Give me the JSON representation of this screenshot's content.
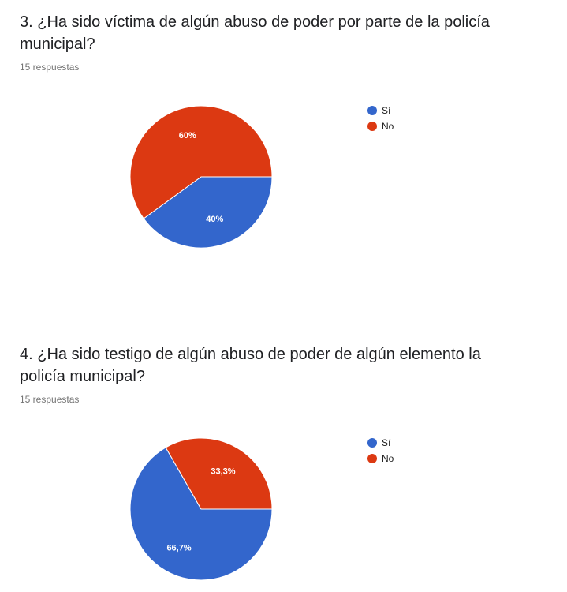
{
  "colors": {
    "si": "#3366cc",
    "no": "#dc3912"
  },
  "questions": [
    {
      "title": "3. ¿Ha sido víctima de algún abuso de poder por parte de la policía municipal?",
      "responses": "15 respuestas",
      "legend": [
        {
          "label": "Sí",
          "color": "#3366cc"
        },
        {
          "label": "No",
          "color": "#dc3912"
        }
      ],
      "chart_data": {
        "type": "pie",
        "categories": [
          "Sí",
          "No"
        ],
        "values": [
          40,
          60
        ],
        "labels": [
          "40%",
          "60%"
        ],
        "colors": [
          "#3366cc",
          "#dc3912"
        ],
        "legend_position": "right"
      }
    },
    {
      "title": "4. ¿Ha sido testigo de algún abuso de poder de algún elemento la policía municipal?",
      "responses": "15 respuestas",
      "legend": [
        {
          "label": "Sí",
          "color": "#3366cc"
        },
        {
          "label": "No",
          "color": "#dc3912"
        }
      ],
      "chart_data": {
        "type": "pie",
        "categories": [
          "Sí",
          "No"
        ],
        "values": [
          66.7,
          33.3
        ],
        "labels": [
          "66,7%",
          "33,3%"
        ],
        "colors": [
          "#3366cc",
          "#dc3912"
        ],
        "legend_position": "right"
      }
    }
  ]
}
